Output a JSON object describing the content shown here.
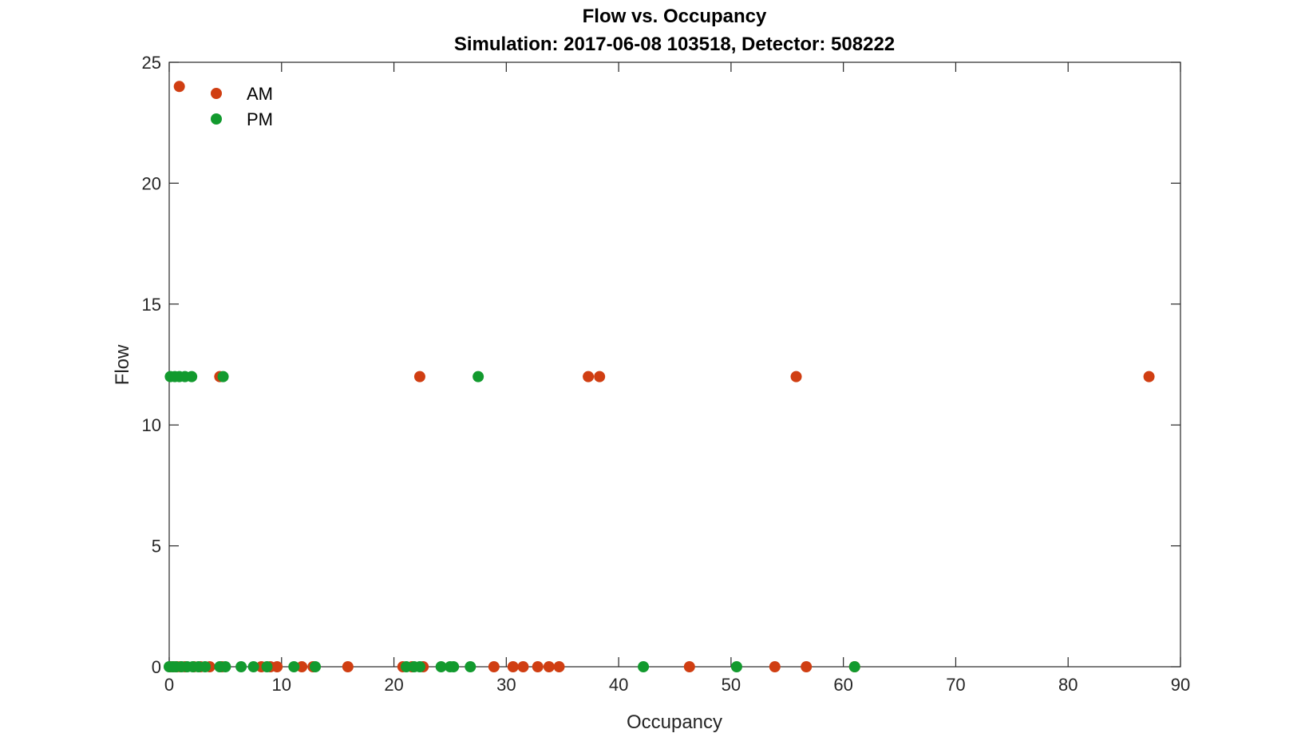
{
  "chart_data": {
    "type": "scatter",
    "title": "Flow vs. Occupancy",
    "subtitle": "Simulation:  2017-06-08 103518,  Detector:  508222",
    "xlabel": "Occupancy",
    "ylabel": "Flow",
    "xlim": [
      0,
      90
    ],
    "ylim": [
      0,
      25
    ],
    "xticks": [
      0,
      10,
      20,
      30,
      40,
      50,
      60,
      70,
      80,
      90
    ],
    "yticks": [
      0,
      5,
      10,
      15,
      20,
      25
    ],
    "grid": false,
    "legend_position": "top-left",
    "series": [
      {
        "name": "AM",
        "color": "#D03E12",
        "x": [
          0.9,
          4.5,
          22.3,
          37.3,
          38.3,
          55.8,
          87.2,
          0.1,
          0.4,
          0.7,
          1.0,
          1.4,
          2.2,
          2.8,
          3.6,
          4.7,
          8.2,
          9.0,
          9.6,
          11.8,
          12.8,
          15.9,
          20.8,
          21.6,
          22.6,
          28.9,
          30.6,
          31.5,
          32.8,
          33.8,
          34.7,
          46.3,
          53.9,
          56.7,
          61.0
        ],
        "y": [
          24,
          12,
          12,
          12,
          12,
          12,
          12,
          0,
          0,
          0,
          0,
          0,
          0,
          0,
          0,
          0,
          0,
          0,
          0,
          0,
          0,
          0,
          0,
          0,
          0,
          0,
          0,
          0,
          0,
          0,
          0,
          0,
          0,
          0,
          0
        ]
      },
      {
        "name": "PM",
        "color": "#129A2E",
        "x": [
          0.1,
          0.5,
          0.9,
          1.4,
          2.0,
          4.8,
          27.5,
          0.0,
          0.3,
          0.6,
          1.1,
          1.6,
          2.1,
          2.6,
          3.2,
          4.5,
          5.0,
          6.4,
          7.5,
          8.7,
          11.1,
          13.0,
          21.1,
          21.8,
          22.3,
          24.2,
          25.0,
          25.3,
          26.8,
          42.2,
          50.5,
          61.0
        ],
        "y": [
          12,
          12,
          12,
          12,
          12,
          12,
          12,
          0,
          0,
          0,
          0,
          0,
          0,
          0,
          0,
          0,
          0,
          0,
          0,
          0,
          0,
          0,
          0,
          0,
          0,
          0,
          0,
          0,
          0,
          0,
          0,
          0
        ]
      }
    ]
  }
}
